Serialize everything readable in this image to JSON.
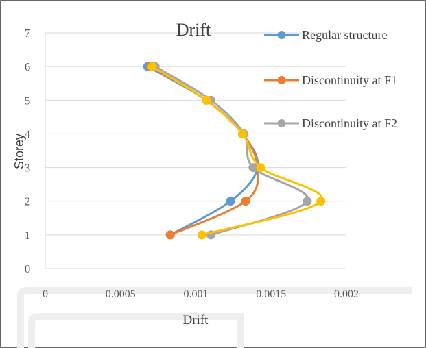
{
  "chart_data": {
    "type": "line",
    "title": "Drift",
    "xlabel": "Drift",
    "ylabel": "Storey",
    "xlim": [
      0,
      0.002
    ],
    "ylim": [
      0,
      7
    ],
    "x_ticks": [
      "0",
      "0.0005",
      "0.001",
      "0.0015",
      "0.002"
    ],
    "y_ticks": [
      "0",
      "1",
      "2",
      "3",
      "4",
      "5",
      "6",
      "7"
    ],
    "grid": "horizontal",
    "legend_position": "top-right",
    "series": [
      {
        "name": "Regular structure",
        "color": "#5b9bd5",
        "points": [
          [
            0.00083,
            1
          ],
          [
            0.00123,
            2
          ],
          [
            0.00141,
            3
          ],
          [
            0.00131,
            4
          ],
          [
            0.00107,
            5
          ],
          [
            0.00068,
            6
          ]
        ]
      },
      {
        "name": "Discontinuity at F1",
        "color": "#ed7d31",
        "points": [
          [
            0.00083,
            1
          ],
          [
            0.00133,
            2
          ],
          [
            0.00141,
            3
          ],
          [
            0.00131,
            4
          ],
          [
            0.00107,
            5
          ],
          [
            0.0007,
            6
          ]
        ]
      },
      {
        "name": "Discontinuity at F2",
        "color": "#a5a5a5",
        "points": [
          [
            0.0011,
            1
          ],
          [
            0.00174,
            2
          ],
          [
            0.00138,
            3
          ],
          [
            0.00132,
            4
          ],
          [
            0.0011,
            5
          ],
          [
            0.00073,
            6
          ]
        ]
      },
      {
        "name": "",
        "color": "#ffc000",
        "points": [
          [
            0.00104,
            1
          ],
          [
            0.00183,
            2
          ],
          [
            0.00143,
            3
          ],
          [
            0.00131,
            4
          ],
          [
            0.00107,
            5
          ],
          [
            0.00071,
            6
          ]
        ]
      }
    ]
  }
}
